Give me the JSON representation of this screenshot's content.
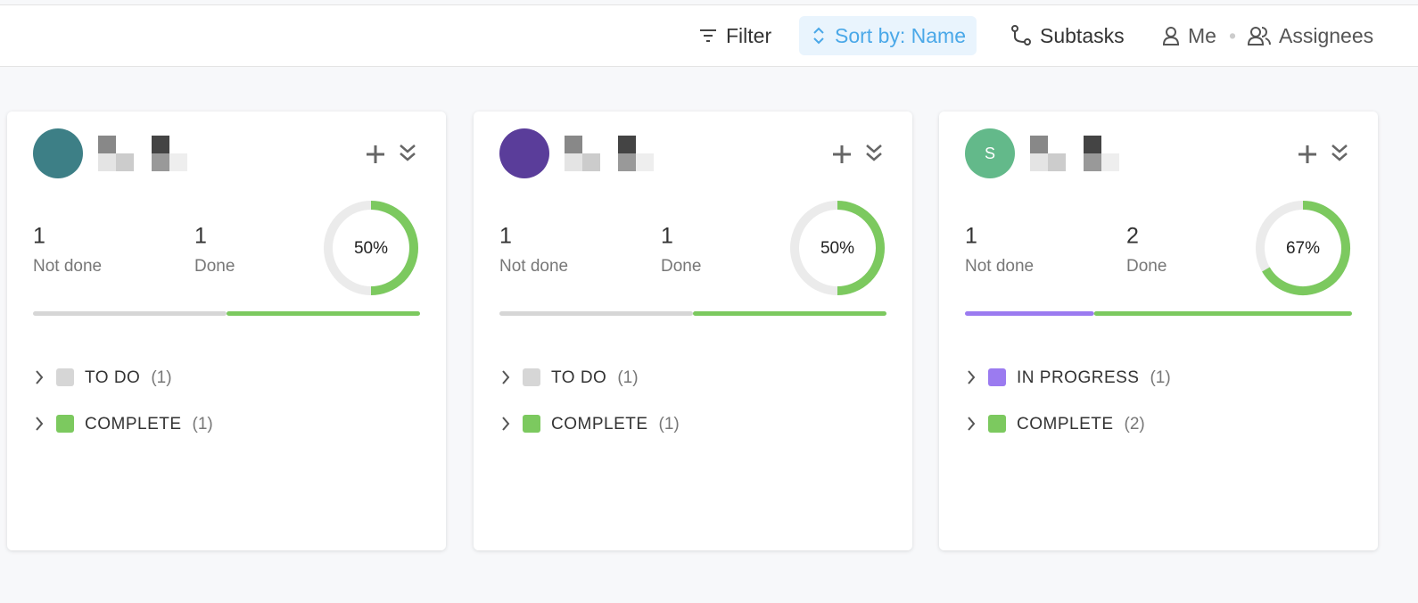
{
  "toolbar": {
    "filter": "Filter",
    "sort": "Sort by: Name",
    "subtasks": "Subtasks",
    "me": "Me",
    "assignees": "Assignees"
  },
  "cards": [
    {
      "avatar_color": "#3d7f86",
      "not_done": 1,
      "not_done_label": "Not done",
      "done": 1,
      "done_label": "Done",
      "percent": "50%",
      "statuses": [
        {
          "name": "TO DO",
          "count": "(1)",
          "color": "#d6d6d6"
        },
        {
          "name": "COMPLETE",
          "count": "(1)",
          "color": "#7cc95f"
        }
      ]
    },
    {
      "avatar_color": "#5a3d9a",
      "not_done": 1,
      "not_done_label": "Not done",
      "done": 1,
      "done_label": "Done",
      "percent": "50%",
      "statuses": [
        {
          "name": "TO DO",
          "count": "(1)",
          "color": "#d6d6d6"
        },
        {
          "name": "COMPLETE",
          "count": "(1)",
          "color": "#7cc95f"
        }
      ]
    },
    {
      "avatar_color": "#63b98a",
      "initial": "S",
      "not_done": 1,
      "not_done_label": "Not done",
      "done": 2,
      "done_label": "Done",
      "percent": "67%",
      "statuses": [
        {
          "name": "IN PROGRESS",
          "count": "(1)",
          "color": "#9b7bf0"
        },
        {
          "name": "COMPLETE",
          "count": "(2)",
          "color": "#7cc95f"
        }
      ]
    }
  ]
}
